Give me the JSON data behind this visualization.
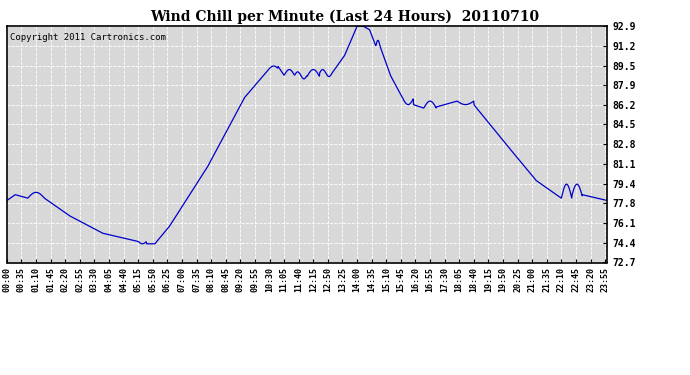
{
  "title": "Wind Chill per Minute (Last 24 Hours)  20110710",
  "copyright": "Copyright 2011 Cartronics.com",
  "line_color": "#0000cc",
  "bg_color": "#ffffff",
  "plot_bg_color": "#d8d8d8",
  "grid_color": "#ffffff",
  "yticks": [
    72.7,
    74.4,
    76.1,
    77.8,
    79.4,
    81.1,
    82.8,
    84.5,
    86.2,
    87.9,
    89.5,
    91.2,
    92.9
  ],
  "ymin": 72.7,
  "ymax": 92.9,
  "minutes_total": 1440,
  "x_tick_labels": [
    "00:00",
    "00:35",
    "01:10",
    "01:45",
    "02:20",
    "02:55",
    "03:30",
    "04:05",
    "04:40",
    "05:15",
    "05:50",
    "06:25",
    "07:00",
    "07:35",
    "08:10",
    "08:45",
    "09:20",
    "09:55",
    "10:30",
    "11:05",
    "11:40",
    "12:15",
    "12:50",
    "13:25",
    "14:00",
    "14:35",
    "15:10",
    "15:45",
    "16:20",
    "16:55",
    "17:30",
    "18:05",
    "18:40",
    "19:15",
    "19:50",
    "20:25",
    "21:00",
    "21:35",
    "22:10",
    "22:45",
    "23:20",
    "23:55"
  ]
}
